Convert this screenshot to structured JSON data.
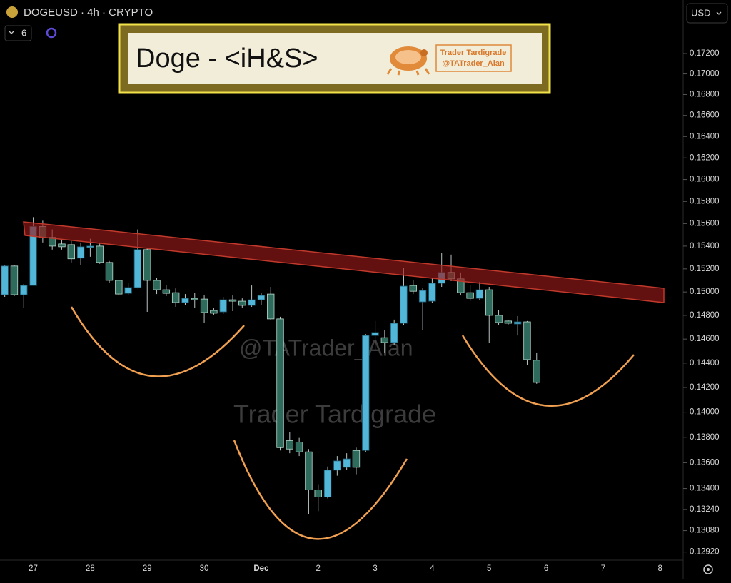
{
  "chart_data": {
    "type": "candlestick",
    "header": {
      "symbol": "DOGEUSD · 4h · CRYPTO",
      "badge": 6,
      "currency": "USD"
    },
    "annotations": {
      "banner": "Doge - <iH&S>",
      "logo_name": "Trader Tardigrade",
      "logo_handle": "@TATrader_Alan",
      "watermark_handle": "@TATrader_Alan",
      "watermark_name": "Trader Tardigrade"
    },
    "up_color": "#52b6d9",
    "down_color": "#2f6b5c",
    "log_scale": true,
    "grid": false,
    "ylim": [
      0.1286,
      0.1752
    ],
    "yticks": [
      {
        "value": 0.172,
        "label": "0.17200"
      },
      {
        "value": 0.17,
        "label": "0.17000"
      },
      {
        "value": 0.168,
        "label": "0.16800"
      },
      {
        "value": 0.166,
        "label": "0.16600"
      },
      {
        "value": 0.164,
        "label": "0.16400"
      },
      {
        "value": 0.162,
        "label": "0.16200"
      },
      {
        "value": 0.16,
        "label": "0.16000"
      },
      {
        "value": 0.158,
        "label": "0.15800"
      },
      {
        "value": 0.156,
        "label": "0.15600"
      },
      {
        "value": 0.154,
        "label": "0.15400"
      },
      {
        "value": 0.152,
        "label": "0.15200"
      },
      {
        "value": 0.15,
        "label": "0.15000"
      },
      {
        "value": 0.148,
        "label": "0.14800"
      },
      {
        "value": 0.146,
        "label": "0.14600"
      },
      {
        "value": 0.144,
        "label": "0.14400"
      },
      {
        "value": 0.142,
        "label": "0.14200"
      },
      {
        "value": 0.14,
        "label": "0.14000"
      },
      {
        "value": 0.138,
        "label": "0.13800"
      },
      {
        "value": 0.136,
        "label": "0.13600"
      },
      {
        "value": 0.134,
        "label": "0.13400"
      },
      {
        "value": 0.1324,
        "label": "0.13240"
      },
      {
        "value": 0.1308,
        "label": "0.13080"
      },
      {
        "value": 0.1292,
        "label": "0.12920"
      }
    ],
    "categories": [
      null,
      null,
      null,
      "27",
      null,
      null,
      null,
      null,
      null,
      "28",
      null,
      null,
      null,
      null,
      null,
      "29",
      null,
      null,
      null,
      null,
      null,
      "30",
      null,
      null,
      null,
      null,
      null,
      "Dec",
      null,
      null,
      null,
      null,
      null,
      "2",
      null,
      null,
      null,
      null,
      null,
      "3",
      null,
      null,
      null,
      null,
      null,
      "4",
      null,
      null,
      null,
      null,
      null,
      "5",
      null,
      null,
      null,
      null,
      null,
      "6",
      null,
      null,
      null,
      null,
      null,
      "7",
      null,
      null,
      null,
      null,
      null,
      "8",
      null,
      null
    ],
    "open": [
      0.14976,
      0.15225,
      0.14976,
      0.15056,
      0.15574,
      0.15477,
      0.15419,
      0.15413,
      0.15294,
      0.15388,
      0.154,
      0.15256,
      0.151,
      0.14988,
      0.15038,
      0.15369,
      0.151,
      0.15019,
      0.14994,
      0.14909,
      0.14945,
      0.14939,
      0.14842,
      0.1483,
      0.14933,
      0.14921,
      0.14885,
      0.14933,
      0.14982,
      0.1477,
      0.13773,
      0.13762,
      0.13685,
      0.13389,
      0.13335,
      0.13542,
      0.13564,
      0.13696,
      0.13696,
      0.1463,
      0.14612,
      0.14571,
      0.14733,
      0.15056,
      0.14915,
      0.14921,
      0.15075,
      0.15169,
      0.15113,
      0.14994,
      0.14945,
      0.15019,
      0.148,
      0.14752,
      0.14727,
      0.14745,
      0.14424,
      null,
      null,
      null,
      null,
      null,
      null,
      null,
      null,
      null,
      null,
      null,
      null,
      null,
      null,
      null
    ],
    "high": [
      0.15231,
      0.15231,
      0.15069,
      0.15658,
      0.15626,
      0.15548,
      0.15465,
      0.15445,
      0.15432,
      0.15465,
      0.15432,
      0.15269,
      0.15106,
      0.15081,
      0.15548,
      0.15381,
      0.15119,
      0.15056,
      0.15031,
      0.14982,
      0.14994,
      0.1497,
      0.14861,
      0.14958,
      0.1497,
      0.14945,
      0.15056,
      0.14994,
      0.15044,
      0.14788,
      0.1384,
      0.13795,
      0.13707,
      0.13433,
      0.1357,
      0.13652,
      0.13674,
      0.13718,
      0.14642,
      0.14752,
      0.14679,
      0.14764,
      0.15206,
      0.15106,
      0.15031,
      0.15119,
      0.15338,
      0.15325,
      0.15169,
      0.15056,
      0.15088,
      0.15044,
      0.14842,
      0.14764,
      0.14794,
      0.14752,
      0.14488,
      null,
      null,
      null,
      null,
      null,
      null,
      null,
      null,
      null,
      null,
      null,
      null,
      null,
      null,
      null
    ],
    "low": [
      0.14958,
      0.14964,
      0.14861,
      0.15056,
      0.15432,
      0.15369,
      0.15369,
      0.15256,
      0.15231,
      0.15306,
      0.15244,
      0.15081,
      0.1497,
      0.14976,
      0.15031,
      0.1483,
      0.14982,
      0.14964,
      0.14873,
      0.14885,
      0.14861,
      0.14739,
      0.148,
      0.14812,
      0.14836,
      0.14861,
      0.14873,
      0.14885,
      0.14764,
      0.13696,
      0.13674,
      0.13652,
      0.13206,
      0.13227,
      0.13324,
      0.13499,
      0.13542,
      0.1351,
      0.13685,
      0.14512,
      0.14488,
      0.14547,
      0.14721,
      0.14982,
      0.14673,
      0.14909,
      0.15044,
      0.15094,
      0.1497,
      0.14921,
      0.14933,
      0.14571,
      0.14721,
      0.14715,
      0.1463,
      0.14382,
      0.1423,
      null,
      null,
      null,
      null,
      null,
      null,
      null,
      null,
      null,
      null,
      null,
      null,
      null,
      null,
      null
    ],
    "close": [
      0.15225,
      0.14976,
      0.15056,
      0.15574,
      0.15477,
      0.154,
      0.15394,
      0.15288,
      0.15394,
      0.154,
      0.15256,
      0.151,
      0.14982,
      0.15038,
      0.15369,
      0.151,
      0.15019,
      0.14988,
      0.14909,
      0.14945,
      0.14933,
      0.14824,
      0.14818,
      0.14933,
      0.14921,
      0.14885,
      0.14933,
      0.1497,
      0.1477,
      0.13718,
      0.13707,
      0.13685,
      0.13389,
      0.13335,
      0.13542,
      0.13614,
      0.1363,
      0.13564,
      0.1463,
      0.14655,
      0.14571,
      0.14733,
      0.1505,
      0.15006,
      0.15013,
      0.15075,
      0.15169,
      0.15113,
      0.14994,
      0.14945,
      0.15019,
      0.148,
      0.14739,
      0.14733,
      0.14745,
      0.14429,
      0.14241,
      null,
      null,
      null,
      null,
      null,
      null,
      null,
      null,
      null,
      null,
      null,
      null,
      null,
      null,
      null
    ]
  }
}
